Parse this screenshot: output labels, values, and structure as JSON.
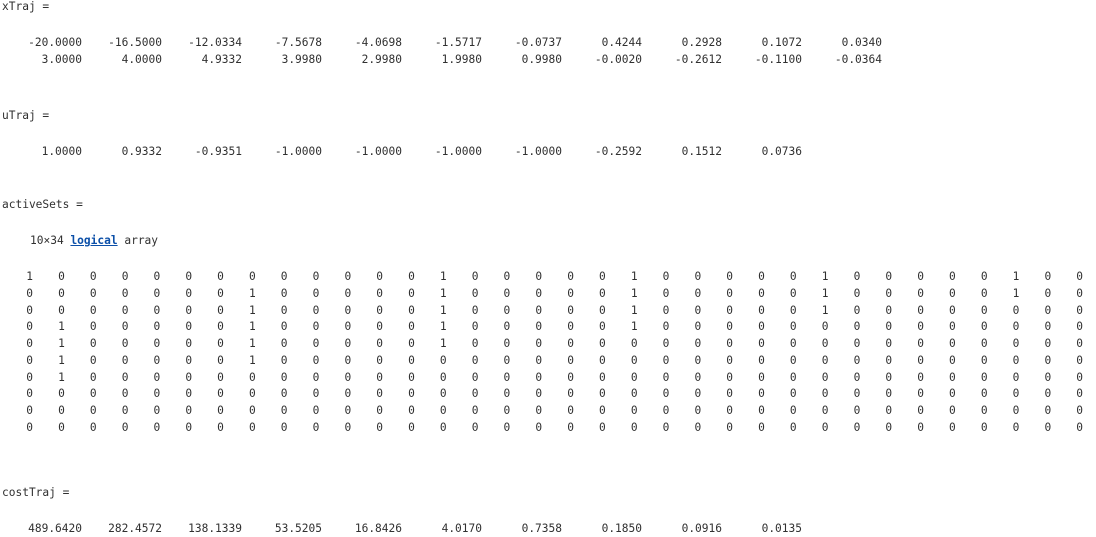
{
  "x_traj": {
    "header": "xTraj =",
    "rows": [
      [
        "-20.0000",
        "-16.5000",
        "-12.0334",
        "-7.5678",
        "-4.0698",
        "-1.5717",
        "-0.0737",
        "0.4244",
        "0.2928",
        "0.1072",
        "0.0340"
      ],
      [
        "3.0000",
        "4.0000",
        "4.9332",
        "3.9980",
        "2.9980",
        "1.9980",
        "0.9980",
        "-0.0020",
        "-0.2612",
        "-0.1100",
        "-0.0364"
      ]
    ]
  },
  "u_traj": {
    "header": "uTraj =",
    "rows": [
      [
        "1.0000",
        "0.9332",
        "-0.9351",
        "-1.0000",
        "-1.0000",
        "-1.0000",
        "-1.0000",
        "-0.2592",
        "0.1512",
        "0.0736"
      ]
    ]
  },
  "active_sets": {
    "header": "activeSets =",
    "size_text": "10×34",
    "type_link": "logical",
    "suffix": "array",
    "rows": [
      "1 0 0 0 0 0 0 0 0 0 0 0 0 1 0 0 0 0 0 1 0 0 0 0 0 1 0 0 0 0 0 1 0 0",
      "0 0 0 0 0 0 0 1 0 0 0 0 0 1 0 0 0 0 0 1 0 0 0 0 0 1 0 0 0 0 0 1 0 0",
      "0 0 0 0 0 0 0 1 0 0 0 0 0 1 0 0 0 0 0 1 0 0 0 0 0 1 0 0 0 0 0 0 0 0",
      "0 1 0 0 0 0 0 1 0 0 0 0 0 1 0 0 0 0 0 1 0 0 0 0 0 0 0 0 0 0 0 0 0 0",
      "0 1 0 0 0 0 0 1 0 0 0 0 0 1 0 0 0 0 0 0 0 0 0 0 0 0 0 0 0 0 0 0 0 0",
      "0 1 0 0 0 0 0 1 0 0 0 0 0 0 0 0 0 0 0 0 0 0 0 0 0 0 0 0 0 0 0 0 0 0",
      "0 1 0 0 0 0 0 0 0 0 0 0 0 0 0 0 0 0 0 0 0 0 0 0 0 0 0 0 0 0 0 0 0 0",
      "0 0 0 0 0 0 0 0 0 0 0 0 0 0 0 0 0 0 0 0 0 0 0 0 0 0 0 0 0 0 0 0 0 0",
      "0 0 0 0 0 0 0 0 0 0 0 0 0 0 0 0 0 0 0 0 0 0 0 0 0 0 0 0 0 0 0 0 0 0",
      "0 0 0 0 0 0 0 0 0 0 0 0 0 0 0 0 0 0 0 0 0 0 0 0 0 0 0 0 0 0 0 0 0 0"
    ]
  },
  "cost_traj": {
    "header": "costTraj =",
    "rows": [
      [
        "489.6420",
        "282.4572",
        "138.1339",
        "53.5205",
        "16.8426",
        "4.0170",
        "0.7358",
        "0.1850",
        "0.0916",
        "0.0135"
      ]
    ]
  }
}
